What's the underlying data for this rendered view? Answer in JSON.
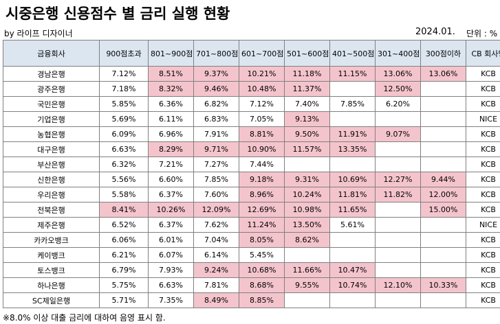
{
  "title": "시중은행 신용점수 별 금리 실행 현황",
  "byline": "by 라이프 디자이너",
  "date": "2024.01.",
  "unit": "단위 : %",
  "highlight_color": "#f4c4cc",
  "header_color": "#dce6f1",
  "columns": [
    "금융회사",
    "900점초과",
    "801~900점",
    "701~800점",
    "601~700점",
    "501~600점",
    "401~500점",
    "301~400점",
    "300점이하",
    "CB 회사명"
  ],
  "rows": [
    {
      "bank": "경남은행",
      "rates": [
        "7.12%",
        "8.51%",
        "9.37%",
        "10.21%",
        "11.18%",
        "11.15%",
        "13.06%",
        "13.06%"
      ],
      "cb": "KCB"
    },
    {
      "bank": "광주은행",
      "rates": [
        "7.18%",
        "8.32%",
        "9.46%",
        "10.48%",
        "11.37%",
        "",
        "12.50%",
        ""
      ],
      "cb": "KCB"
    },
    {
      "bank": "국민은행",
      "rates": [
        "5.85%",
        "6.36%",
        "6.82%",
        "7.12%",
        "7.40%",
        "7.85%",
        "6.20%",
        ""
      ],
      "cb": "KCB"
    },
    {
      "bank": "기업은행",
      "rates": [
        "5.69%",
        "6.11%",
        "6.83%",
        "7.05%",
        "9.13%",
        "",
        "",
        ""
      ],
      "cb": "NICE"
    },
    {
      "bank": "농협은행",
      "rates": [
        "6.09%",
        "6.96%",
        "7.91%",
        "8.81%",
        "9.50%",
        "11.91%",
        "9.07%",
        ""
      ],
      "cb": "KCB"
    },
    {
      "bank": "대구은행",
      "rates": [
        "6.63%",
        "8.29%",
        "9.71%",
        "10.90%",
        "11.57%",
        "13.35%",
        "",
        ""
      ],
      "cb": "KCB"
    },
    {
      "bank": "부산은행",
      "rates": [
        "6.32%",
        "7.21%",
        "7.27%",
        "7.44%",
        "",
        "",
        "",
        ""
      ],
      "cb": "KCB"
    },
    {
      "bank": "신한은행",
      "rates": [
        "5.56%",
        "6.60%",
        "7.85%",
        "9.18%",
        "9.31%",
        "10.69%",
        "12.27%",
        "9.44%"
      ],
      "cb": "KCB"
    },
    {
      "bank": "우리은행",
      "rates": [
        "5.58%",
        "6.37%",
        "7.60%",
        "8.96%",
        "10.24%",
        "11.81%",
        "11.82%",
        "12.00%"
      ],
      "cb": "KCB"
    },
    {
      "bank": "전북은행",
      "rates": [
        "8.41%",
        "10.26%",
        "12.09%",
        "12.69%",
        "10.98%",
        "11.65%",
        "",
        "15.00%"
      ],
      "cb": "KCB"
    },
    {
      "bank": "제주은행",
      "rates": [
        "6.52%",
        "6.37%",
        "7.62%",
        "11.24%",
        "13.50%",
        "5.61%",
        "",
        ""
      ],
      "cb": "NICE"
    },
    {
      "bank": "카카오뱅크",
      "rates": [
        "6.06%",
        "6.01%",
        "7.04%",
        "8.05%",
        "8.62%",
        "",
        "",
        ""
      ],
      "cb": "KCB"
    },
    {
      "bank": "케이뱅크",
      "rates": [
        "6.21%",
        "6.07%",
        "6.14%",
        "5.45%",
        "",
        "",
        "",
        ""
      ],
      "cb": "KCB"
    },
    {
      "bank": "토스뱅크",
      "rates": [
        "6.79%",
        "7.93%",
        "9.24%",
        "10.68%",
        "11.66%",
        "10.47%",
        "",
        ""
      ],
      "cb": "KCB"
    },
    {
      "bank": "하나은행",
      "rates": [
        "5.75%",
        "6.63%",
        "7.81%",
        "8.68%",
        "9.55%",
        "10.74%",
        "12.10%",
        "10.33%"
      ],
      "cb": "KCB"
    },
    {
      "bank": "SC제일은행",
      "rates": [
        "5.71%",
        "7.35%",
        "8.49%",
        "8.85%",
        "",
        "",
        "",
        ""
      ],
      "cb": "KCB"
    }
  ],
  "footnote": "※8.0% 이상 대출 금리에 대하여 음영 표시 함."
}
